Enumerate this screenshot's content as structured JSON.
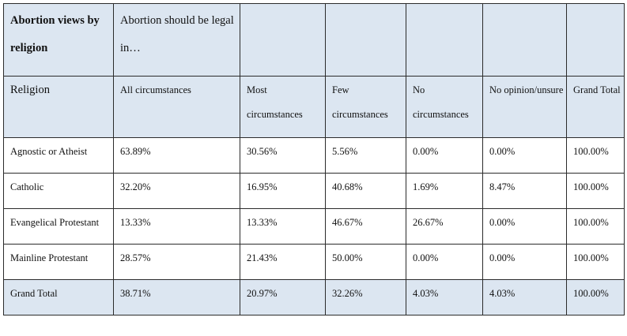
{
  "table": {
    "title": "Abortion views by religion",
    "question": "Abortion should be legal in…",
    "headers": [
      "Religion",
      "All circumstances",
      "Most circumstances",
      "Few circumstances",
      "No circumstances",
      "No opinion/unsure",
      "Grand Total"
    ],
    "rows": [
      {
        "religion": "Agnostic or Atheist",
        "values": [
          "63.89%",
          "30.56%",
          "5.56%",
          "0.00%",
          "0.00%",
          "100.00%"
        ]
      },
      {
        "religion": "Catholic",
        "values": [
          "32.20%",
          "16.95%",
          "40.68%",
          "1.69%",
          "8.47%",
          "100.00%"
        ]
      },
      {
        "religion": "Evangelical Protestant",
        "values": [
          "13.33%",
          "13.33%",
          "46.67%",
          "26.67%",
          "0.00%",
          "100.00%"
        ]
      },
      {
        "religion": "Mainline Protestant",
        "values": [
          "28.57%",
          "21.43%",
          "50.00%",
          "0.00%",
          "0.00%",
          "100.00%"
        ]
      }
    ],
    "total": {
      "label": "Grand Total",
      "values": [
        "38.71%",
        "20.97%",
        "32.26%",
        "4.03%",
        "4.03%",
        "100.00%"
      ]
    }
  }
}
